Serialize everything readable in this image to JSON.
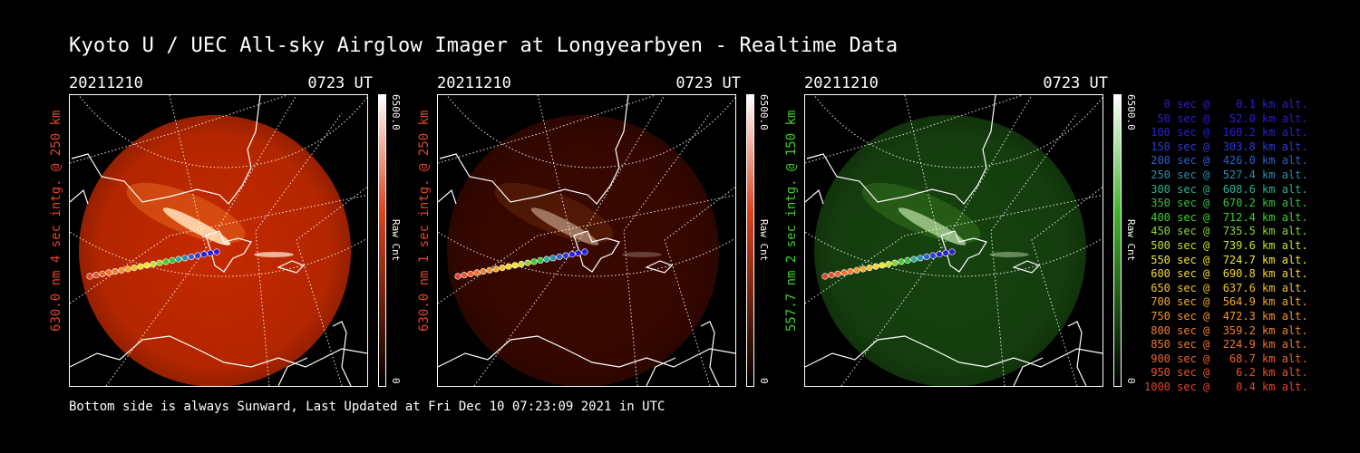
{
  "title": "Kyoto U / UEC All-sky Airglow Imager at Longyearbyen - Realtime Data",
  "footer": "Bottom side is always Sunward, Last Updated at Fri Dec 10 07:23:09 2021 in UTC",
  "panels": [
    {
      "date": "20211210",
      "time": "0723 UT",
      "ylabel": "630.0 nm 4 sec intg. @ 250 km",
      "ylabel_color": "#e8412a",
      "colorbar": {
        "max": "6500.0",
        "min": "0",
        "unit": "Raw Cnt",
        "color_low": "#000000",
        "color_mid": "#e0421a",
        "color_high": "#ffffff"
      },
      "image_tint": "#c62a00",
      "image_brightness": 1.0
    },
    {
      "date": "20211210",
      "time": "0723 UT",
      "ylabel": "630.0 nm 1 sec intg. @ 250 km",
      "ylabel_color": "#e8412a",
      "colorbar": {
        "max": "6500.0",
        "min": "0",
        "unit": "Raw Cnt",
        "color_low": "#000000",
        "color_mid": "#e0421a",
        "color_high": "#ffffff"
      },
      "image_tint": "#3a0800",
      "image_brightness": 0.35
    },
    {
      "date": "20211210",
      "time": "0723 UT",
      "ylabel": "557.7 nm 2 sec intg. @ 150 km",
      "ylabel_color": "#3ed12a",
      "colorbar": {
        "max": "6500.0",
        "min": "0",
        "unit": "Raw Cnt",
        "color_low": "#000000",
        "color_mid": "#3fb52a",
        "color_high": "#ffffff"
      },
      "image_tint": "#16430f",
      "image_brightness": 0.55
    }
  ],
  "legend": [
    {
      "text": "   0 sec @    0.1 km alt.",
      "color": "#2a1dd8"
    },
    {
      "text": "  50 sec @   52.0 km alt.",
      "color": "#2a1dd8"
    },
    {
      "text": " 100 sec @  160.2 km alt.",
      "color": "#2a1dd8"
    },
    {
      "text": " 150 sec @  303.8 km alt.",
      "color": "#2a3ad8"
    },
    {
      "text": " 200 sec @  426.0 km alt.",
      "color": "#2a5fd8"
    },
    {
      "text": " 250 sec @  527.4 km alt.",
      "color": "#2a8eb0"
    },
    {
      "text": " 300 sec @  608.6 km alt.",
      "color": "#2ab090"
    },
    {
      "text": " 350 sec @  670.2 km alt.",
      "color": "#33c040"
    },
    {
      "text": " 400 sec @  712.4 km alt.",
      "color": "#3ed12a"
    },
    {
      "text": " 450 sec @  735.5 km alt.",
      "color": "#8ad82a"
    },
    {
      "text": " 500 sec @  739.6 km alt.",
      "color": "#c8e02a"
    },
    {
      "text": " 550 sec @  724.7 km alt.",
      "color": "#f0e62a"
    },
    {
      "text": " 600 sec @  690.8 km alt.",
      "color": "#f5d82a"
    },
    {
      "text": " 650 sec @  637.6 km alt.",
      "color": "#f5c02a"
    },
    {
      "text": " 700 sec @  564.9 km alt.",
      "color": "#f5a82a"
    },
    {
      "text": " 750 sec @  472.3 km alt.",
      "color": "#f5942a"
    },
    {
      "text": " 800 sec @  359.2 km alt.",
      "color": "#f5802a"
    },
    {
      "text": " 850 sec @  224.9 km alt.",
      "color": "#f5702a"
    },
    {
      "text": " 900 sec @   68.7 km alt.",
      "color": "#f0602a"
    },
    {
      "text": " 950 sec @    6.2 km alt.",
      "color": "#eb502a"
    },
    {
      "text": "1000 sec @    0.4 km alt.",
      "color": "#e8412a"
    }
  ]
}
